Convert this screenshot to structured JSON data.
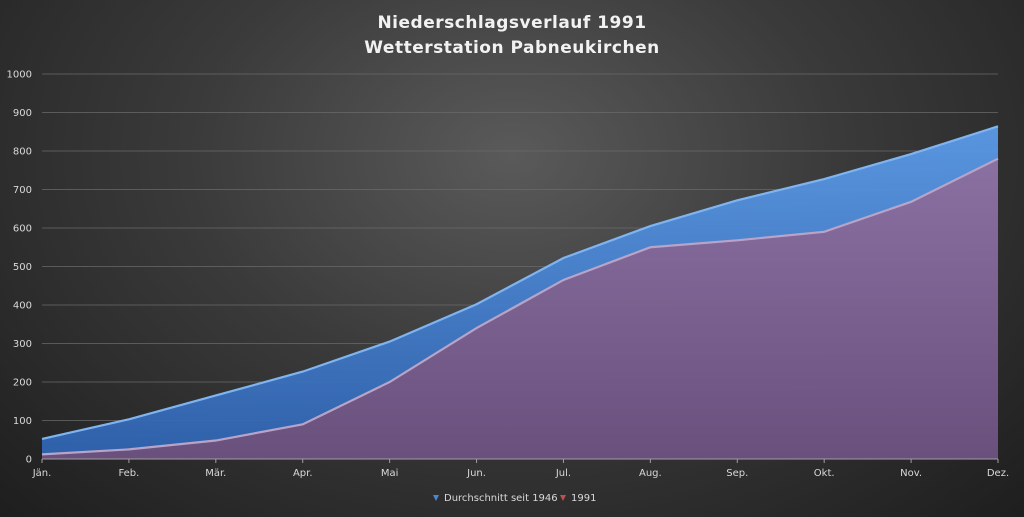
{
  "chart_data": {
    "type": "area",
    "title": [
      "Niederschlagsverlauf 1991",
      "Wetterstation Pabneukirchen"
    ],
    "xlabel": "",
    "ylabel": "",
    "categories": [
      "Jän.",
      "Feb.",
      "Mär.",
      "Apr.",
      "Mai",
      "Jun.",
      "Jul.",
      "Aug.",
      "Sep.",
      "Okt.",
      "Nov.",
      "Dez."
    ],
    "ylim": [
      0,
      1000
    ],
    "yticks": [
      0,
      100,
      200,
      300,
      400,
      500,
      600,
      700,
      800,
      900,
      1000
    ],
    "grid": true,
    "legend_position": "bottom",
    "series": [
      {
        "name": "Durchschnitt seit 1946",
        "color": "#4a86d4",
        "values": [
          52,
          103,
          165,
          227,
          305,
          402,
          522,
          605,
          672,
          727,
          792,
          864
        ]
      },
      {
        "name": "1991",
        "color": "#8a6a9c",
        "values": [
          12,
          25,
          48,
          90,
          200,
          340,
          465,
          550,
          568,
          590,
          668,
          780
        ]
      }
    ]
  }
}
